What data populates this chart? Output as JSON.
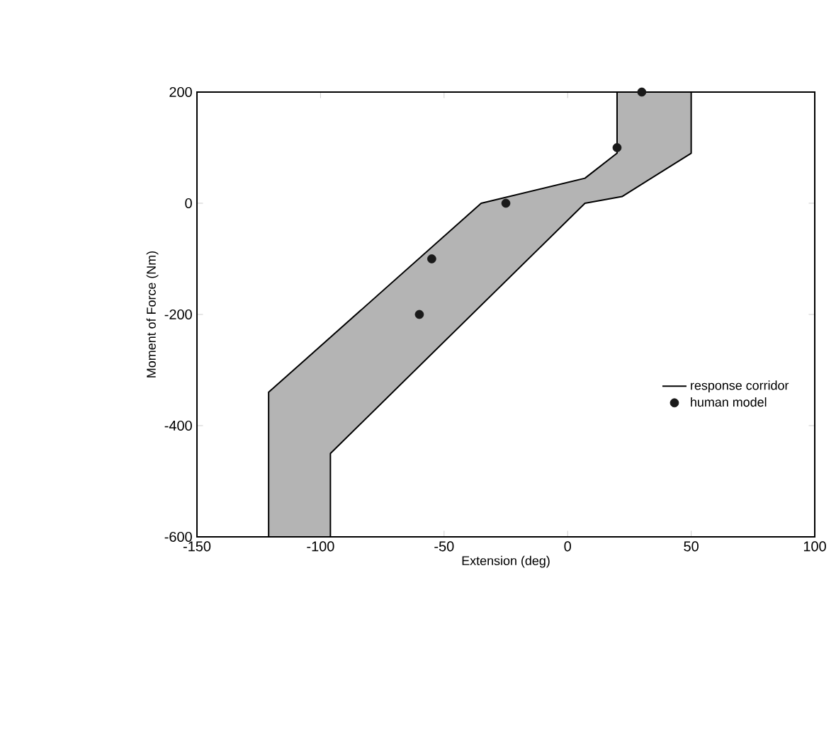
{
  "chart_data": {
    "type": "area",
    "xlabel": "Extension (deg)",
    "ylabel": "Moment of Force (Nm)",
    "xlim": [
      -150,
      100
    ],
    "ylim": [
      -600,
      200
    ],
    "xticks": [
      -150,
      -100,
      -50,
      0,
      50,
      100
    ],
    "yticks": [
      -600,
      -400,
      -200,
      0,
      200
    ],
    "grid": false,
    "legend": "right",
    "series": [
      {
        "name": "response corridor",
        "marker": "none",
        "color": "#b4b4b4",
        "x": [
          -121,
          -121,
          -35,
          7,
          20,
          20,
          50,
          50,
          22,
          7,
          -96,
          -96
        ],
        "values": [
          -600,
          -340,
          0,
          45,
          90,
          200,
          200,
          90,
          12,
          0,
          -450,
          -600
        ]
      },
      {
        "name": "human model",
        "type": "scatter",
        "marker": "circle",
        "color": "#1a1a1a",
        "x": [
          30,
          20,
          -25,
          -55,
          -60
        ],
        "values": [
          200,
          100,
          0,
          -100,
          -200
        ]
      }
    ]
  }
}
